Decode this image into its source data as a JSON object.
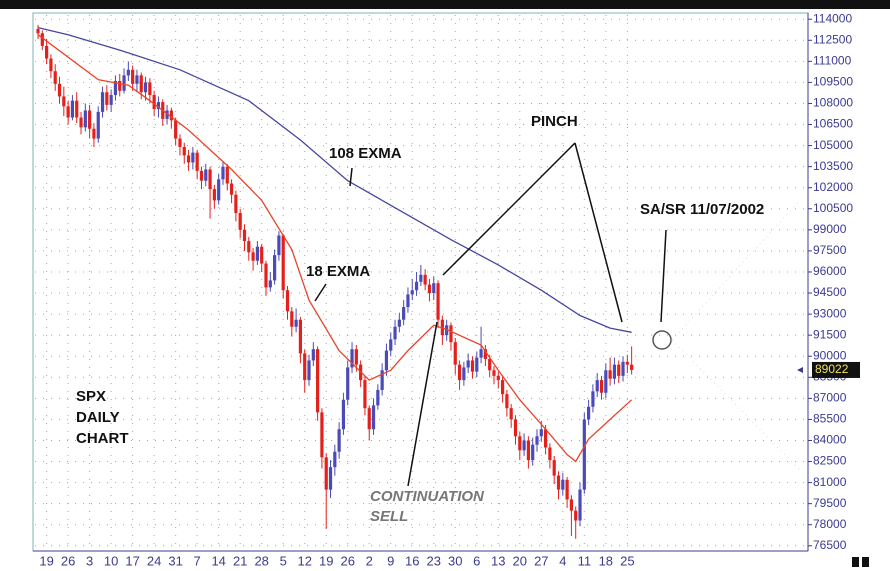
{
  "chart_data": {
    "type": "candlestick",
    "categories": [
      null,
      null,
      "19",
      null,
      null,
      null,
      null,
      "26",
      null,
      null,
      null,
      null,
      "3",
      null,
      null,
      null,
      null,
      "10",
      null,
      null,
      null,
      null,
      "17",
      null,
      null,
      null,
      null,
      "24",
      null,
      null,
      null,
      null,
      "31",
      null,
      null,
      null,
      null,
      "7",
      null,
      null,
      null,
      null,
      "14",
      null,
      null,
      null,
      null,
      "21",
      null,
      null,
      null,
      null,
      "28",
      null,
      null,
      null,
      null,
      "5",
      null,
      null,
      null,
      null,
      "12",
      null,
      null,
      null,
      null,
      "19",
      null,
      null,
      null,
      null,
      "26",
      null,
      null,
      null,
      null,
      "2",
      null,
      null,
      null,
      null,
      "9",
      null,
      null,
      null,
      null,
      "16",
      null,
      null,
      null,
      null,
      "23",
      null,
      null,
      null,
      null,
      "30",
      null,
      null,
      null,
      null,
      "6",
      null,
      null,
      null,
      null,
      "13",
      null,
      null,
      null,
      null,
      "20",
      null,
      null,
      null,
      null,
      "27",
      null,
      null,
      null,
      null,
      "4",
      null,
      null,
      null,
      null,
      "11",
      null,
      null,
      null,
      null,
      "18",
      null,
      null,
      null,
      null,
      "25",
      null
    ],
    "candles": [
      [
        113300,
        113600,
        112600,
        113000
      ],
      [
        113000,
        113200,
        111800,
        112100
      ],
      [
        112100,
        112600,
        110800,
        111200
      ],
      [
        111200,
        111500,
        109800,
        110300
      ],
      [
        110300,
        110800,
        108900,
        109400
      ],
      [
        109400,
        109900,
        108000,
        108500
      ],
      [
        108500,
        109200,
        107100,
        107800
      ],
      [
        107800,
        108200,
        106500,
        107000
      ],
      [
        107000,
        108600,
        106800,
        108200
      ],
      [
        108200,
        108800,
        106600,
        107000
      ],
      [
        107000,
        107400,
        105800,
        106300
      ],
      [
        106300,
        108000,
        106000,
        107500
      ],
      [
        107500,
        107900,
        105500,
        106200
      ],
      [
        106200,
        106600,
        104900,
        105500
      ],
      [
        105500,
        107800,
        105200,
        107400
      ],
      [
        107400,
        109200,
        107000,
        108800
      ],
      [
        108800,
        109300,
        107500,
        107900
      ],
      [
        107900,
        109000,
        107400,
        108600
      ],
      [
        108600,
        110000,
        108200,
        109600
      ],
      [
        109600,
        110100,
        108500,
        108900
      ],
      [
        108900,
        110500,
        108700,
        110000
      ],
      [
        110000,
        111000,
        109600,
        110400
      ],
      [
        110400,
        110700,
        108900,
        109400
      ],
      [
        109400,
        110400,
        108800,
        110000
      ],
      [
        110000,
        110200,
        108300,
        108800
      ],
      [
        108800,
        109900,
        108200,
        109500
      ],
      [
        109500,
        109800,
        108000,
        108600
      ],
      [
        108600,
        108900,
        107100,
        107600
      ],
      [
        107600,
        108500,
        107000,
        108100
      ],
      [
        108100,
        108300,
        106400,
        106900
      ],
      [
        106900,
        107900,
        106500,
        107500
      ],
      [
        107500,
        107700,
        106200,
        106800
      ],
      [
        106800,
        107000,
        105000,
        105500
      ],
      [
        105500,
        105800,
        104300,
        104900
      ],
      [
        104900,
        105200,
        103700,
        104300
      ],
      [
        104300,
        104700,
        103200,
        103800
      ],
      [
        103800,
        104900,
        103300,
        104500
      ],
      [
        104500,
        104700,
        102600,
        103200
      ],
      [
        103200,
        103500,
        101900,
        102500
      ],
      [
        102500,
        103700,
        102100,
        103300
      ],
      [
        103300,
        103500,
        99800,
        101900
      ],
      [
        101900,
        102200,
        100500,
        101100
      ],
      [
        101100,
        103000,
        100800,
        102600
      ],
      [
        102600,
        103900,
        102200,
        103500
      ],
      [
        103500,
        103700,
        101800,
        102300
      ],
      [
        102300,
        102600,
        100900,
        101500
      ],
      [
        101500,
        101800,
        99600,
        100200
      ],
      [
        100200,
        100500,
        98400,
        99000
      ],
      [
        99000,
        99400,
        97500,
        98200
      ],
      [
        98200,
        98500,
        96800,
        97400
      ],
      [
        97400,
        97700,
        96100,
        96800
      ],
      [
        96800,
        98200,
        96500,
        97800
      ],
      [
        97800,
        98000,
        96000,
        96600
      ],
      [
        96600,
        96800,
        94300,
        94900
      ],
      [
        94900,
        96000,
        94600,
        95400
      ],
      [
        95400,
        97600,
        95100,
        97200
      ],
      [
        97200,
        98900,
        96800,
        98600
      ],
      [
        98600,
        98700,
        94100,
        94700
      ],
      [
        94700,
        95000,
        92600,
        93200
      ],
      [
        93200,
        93500,
        91400,
        92100
      ],
      [
        92100,
        93400,
        91700,
        92600
      ],
      [
        92600,
        92800,
        89500,
        90200
      ],
      [
        90200,
        90500,
        87400,
        88300
      ],
      [
        88300,
        90100,
        87900,
        89700
      ],
      [
        89700,
        91000,
        89300,
        90500
      ],
      [
        90500,
        90700,
        85400,
        86000
      ],
      [
        86000,
        86300,
        82000,
        82800
      ],
      [
        82800,
        83100,
        77700,
        80500
      ],
      [
        80500,
        82600,
        79900,
        82100
      ],
      [
        82100,
        83700,
        81500,
        83200
      ],
      [
        83200,
        85300,
        82700,
        84800
      ],
      [
        84800,
        87400,
        84400,
        86900
      ],
      [
        86900,
        89700,
        86500,
        89200
      ],
      [
        89200,
        91000,
        88800,
        90500
      ],
      [
        90500,
        90800,
        88900,
        89400
      ],
      [
        89400,
        89700,
        87800,
        88300
      ],
      [
        88300,
        88600,
        85800,
        86300
      ],
      [
        86300,
        86500,
        84000,
        84800
      ],
      [
        84800,
        87000,
        84400,
        86500
      ],
      [
        86500,
        88000,
        86200,
        87600
      ],
      [
        87600,
        89500,
        87200,
        89000
      ],
      [
        89000,
        90900,
        88600,
        90400
      ],
      [
        90400,
        91700,
        90000,
        91200
      ],
      [
        91200,
        92600,
        90800,
        92100
      ],
      [
        92100,
        93100,
        91700,
        92600
      ],
      [
        92600,
        94000,
        92200,
        93500
      ],
      [
        93500,
        94900,
        93100,
        94400
      ],
      [
        94400,
        95500,
        94000,
        94700
      ],
      [
        94700,
        96000,
        94300,
        95300
      ],
      [
        95300,
        96500,
        95000,
        95800
      ],
      [
        95800,
        96200,
        94700,
        95100
      ],
      [
        95100,
        95500,
        93900,
        94500
      ],
      [
        94500,
        95700,
        94000,
        95200
      ],
      [
        95200,
        95400,
        92000,
        92600
      ],
      [
        92600,
        92900,
        90800,
        91500
      ],
      [
        91500,
        92600,
        91100,
        92200
      ],
      [
        92200,
        92400,
        90400,
        91000
      ],
      [
        91000,
        91300,
        88700,
        89400
      ],
      [
        89400,
        89700,
        87600,
        88300
      ],
      [
        88300,
        89600,
        87900,
        89200
      ],
      [
        89200,
        90200,
        88800,
        89700
      ],
      [
        89700,
        90000,
        88400,
        88900
      ],
      [
        88900,
        90300,
        88500,
        89900
      ],
      [
        89900,
        92100,
        89500,
        90500
      ],
      [
        90500,
        90800,
        89300,
        89800
      ],
      [
        89800,
        90100,
        88500,
        89000
      ],
      [
        89000,
        89300,
        88000,
        88600
      ],
      [
        88600,
        88900,
        87700,
        88300
      ],
      [
        88300,
        88600,
        86700,
        87300
      ],
      [
        87300,
        87600,
        85700,
        86300
      ],
      [
        86300,
        86600,
        84900,
        85500
      ],
      [
        85500,
        85800,
        83700,
        84300
      ],
      [
        84300,
        84600,
        82600,
        83300
      ],
      [
        83300,
        84500,
        82900,
        84000
      ],
      [
        84000,
        84300,
        82000,
        82600
      ],
      [
        82600,
        84200,
        82200,
        83700
      ],
      [
        83700,
        84800,
        83200,
        84300
      ],
      [
        84300,
        85400,
        83900,
        84800
      ],
      [
        84800,
        85100,
        83000,
        83500
      ],
      [
        83500,
        83800,
        82000,
        82600
      ],
      [
        82600,
        82900,
        80900,
        81500
      ],
      [
        81500,
        81800,
        79800,
        80500
      ],
      [
        80500,
        81700,
        80100,
        81200
      ],
      [
        81200,
        81400,
        79200,
        79800
      ],
      [
        79800,
        80100,
        77200,
        79000
      ],
      [
        79000,
        79300,
        77000,
        78300
      ],
      [
        78300,
        81000,
        77900,
        80500
      ],
      [
        80500,
        86000,
        80200,
        85500
      ],
      [
        85500,
        86900,
        85100,
        86400
      ],
      [
        86400,
        88000,
        86000,
        87500
      ],
      [
        87500,
        88800,
        87100,
        88300
      ],
      [
        88300,
        88600,
        86900,
        87400
      ],
      [
        87400,
        89500,
        87000,
        89000
      ],
      [
        89000,
        89900,
        87900,
        88400
      ],
      [
        88400,
        89900,
        88000,
        89400
      ],
      [
        89400,
        89700,
        88100,
        88600
      ],
      [
        88600,
        90000,
        88200,
        89600
      ],
      [
        89600,
        90100,
        88800,
        89400
      ],
      [
        89400,
        90700,
        88700,
        89022
      ]
    ],
    "up_color": "#4a4ab8",
    "down_color": "#e3201b",
    "series": [
      {
        "name": "18 EXMA",
        "color": "#e8452a",
        "x": [
          0,
          14,
          21,
          26,
          35,
          45,
          52,
          59,
          63,
          70,
          77,
          82,
          86,
          92,
          95,
          103,
          107,
          112,
          118,
          123,
          125,
          128,
          133,
          138
        ],
        "values": [
          112900,
          109700,
          109300,
          108200,
          106100,
          103300,
          101100,
          97600,
          94000,
          90400,
          88300,
          89000,
          90400,
          92200,
          91900,
          90800,
          89000,
          86900,
          84800,
          83000,
          82500,
          84100,
          85500,
          86900
        ]
      },
      {
        "name": "108 EXMA",
        "color": "#4646a0",
        "x": [
          0,
          7,
          19,
          33,
          49,
          61,
          72,
          84,
          96,
          107,
          117,
          126,
          133,
          138
        ],
        "values": [
          113400,
          112900,
          111800,
          110400,
          108200,
          105400,
          102500,
          100400,
          98300,
          96500,
          94700,
          92900,
          92000,
          91700
        ]
      }
    ],
    "xlim": [
      -0.7,
      179
    ],
    "ylim": [
      76200,
      114300
    ],
    "yticks": [
      114000,
      112500,
      111000,
      109500,
      108000,
      106500,
      105000,
      103500,
      102000,
      100500,
      99000,
      97500,
      96000,
      94500,
      93000,
      91500,
      90000,
      88500,
      87000,
      85500,
      84000,
      82500,
      81000,
      79500,
      78000,
      76500
    ],
    "grid": true,
    "annotations": {
      "pinch": "PINCH",
      "sasr": "SA/SR 11/07/2002",
      "spx": [
        "SPX",
        "DAILY",
        "CHART"
      ],
      "continuation": [
        "CONTINUATION",
        "SELL"
      ]
    }
  }
}
